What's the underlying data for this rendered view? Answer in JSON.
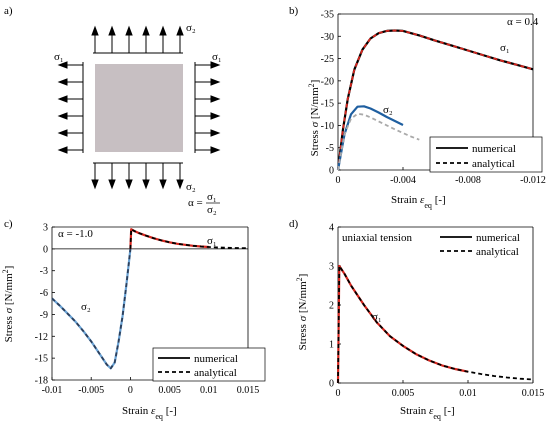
{
  "panel_a": {
    "label": "a)",
    "sigma1_left": "σ₁",
    "sigma1_right": "σ₁",
    "sigma2_top": "σ₂",
    "sigma2_bottom": "σ₂",
    "alpha_text": "α =",
    "alpha_num": "σ₁",
    "alpha_den": "σ₂",
    "colors": {
      "plate": "#c7bfc2",
      "arrow": "#000000"
    }
  },
  "chart_data": [
    {
      "panel": "b)",
      "type": "line",
      "annotation": "α = 0.4",
      "xlabel": "Strain ε_eq [-]",
      "ylabel": "Stress σ [N/mm²]",
      "xlim": [
        0,
        -0.012
      ],
      "ylim": [
        0,
        -35
      ],
      "xticks": [
        "0",
        "-0.004",
        "-0.008",
        "-0.012"
      ],
      "yticks": [
        "0",
        "-5",
        "-10",
        "-15",
        "-20",
        "-25",
        "-30",
        "-35"
      ],
      "curve_labels": [
        "σ₁",
        "σ₂"
      ],
      "legend": [
        "numerical",
        "analytical"
      ],
      "legend_position": "bottom-right",
      "series": [
        {
          "name": "σ₁ numerical",
          "style": "solid",
          "color": "#000000",
          "x": [
            0,
            -0.0003,
            -0.0006,
            -0.001,
            -0.0015,
            -0.002,
            -0.0025,
            -0.003,
            -0.0035,
            -0.004,
            -0.005,
            -0.006,
            -0.007,
            -0.008,
            -0.009,
            -0.01,
            -0.011,
            -0.012
          ],
          "y": [
            0,
            -9,
            -16,
            -22.5,
            -27,
            -29.5,
            -30.7,
            -31.2,
            -31.3,
            -31.2,
            -30.2,
            -29.0,
            -27.9,
            -26.8,
            -25.7,
            -24.6,
            -23.6,
            -22.6
          ]
        },
        {
          "name": "σ₁ analytical",
          "style": "dash",
          "color": "#d7261e",
          "x": [
            0,
            -0.0003,
            -0.0006,
            -0.001,
            -0.0015,
            -0.002,
            -0.0025,
            -0.003,
            -0.0035,
            -0.004,
            -0.005,
            -0.006,
            -0.007,
            -0.008,
            -0.009,
            -0.01,
            -0.011,
            -0.012
          ],
          "y": [
            0,
            -9,
            -16,
            -22.5,
            -27,
            -29.5,
            -30.7,
            -31.2,
            -31.3,
            -31.2,
            -30.2,
            -29.0,
            -27.9,
            -26.8,
            -25.7,
            -24.6,
            -23.6,
            -22.6
          ]
        },
        {
          "name": "σ₂ numerical",
          "style": "solid",
          "color": "#1f5fa0",
          "x": [
            0,
            -0.0004,
            -0.0008,
            -0.0012,
            -0.0016,
            -0.002,
            -0.0025,
            -0.003,
            -0.0035,
            -0.004
          ],
          "y": [
            0,
            -8,
            -12.5,
            -14.2,
            -14.3,
            -13.8,
            -12.9,
            -11.9,
            -11.0,
            -10.1
          ]
        },
        {
          "name": "σ₂ analytical",
          "style": "dash",
          "color": "#aaaaaa",
          "x": [
            0,
            -0.0004,
            -0.0008,
            -0.0012,
            -0.0016,
            -0.002,
            -0.0025,
            -0.003,
            -0.0035,
            -0.004,
            -0.0045,
            -0.005
          ],
          "y": [
            0,
            -8,
            -11.5,
            -12.6,
            -12.4,
            -11.8,
            -10.9,
            -10.0,
            -9.1,
            -8.3,
            -7.5,
            -6.8
          ]
        }
      ]
    },
    {
      "panel": "c)",
      "type": "line",
      "annotation": "α = -1.0",
      "xlabel": "Strain ε_eq [-]",
      "ylabel": "Stress σ [N/mm²]",
      "xlim": [
        -0.01,
        0.015
      ],
      "ylim": [
        -18,
        3
      ],
      "xticks": [
        "-0.01",
        "-0.005",
        "0",
        "0.005",
        "0.01",
        "0.015"
      ],
      "yticks": [
        "3",
        "0",
        "-3",
        "-6",
        "-9",
        "-12",
        "-15",
        "-18"
      ],
      "curve_labels": [
        "σ₁",
        "σ₂"
      ],
      "legend": [
        "numerical",
        "analytical"
      ],
      "legend_position": "bottom-right",
      "series": [
        {
          "name": "σ₂ numerical",
          "style": "solid",
          "color": "#6aa2d4",
          "x": [
            -0.01,
            -0.009,
            -0.008,
            -0.007,
            -0.006,
            -0.005,
            -0.004,
            -0.003,
            -0.0025,
            -0.002,
            -0.0015,
            -0.001,
            -0.0005,
            -0.0002,
            0
          ],
          "y": [
            -6.8,
            -7.8,
            -8.9,
            -10.0,
            -11.3,
            -12.7,
            -14.3,
            -15.9,
            -16.4,
            -15.6,
            -12.7,
            -9.2,
            -4.8,
            -2.0,
            0
          ]
        },
        {
          "name": "σ₂ analytical",
          "style": "dash",
          "color": "#2c3e5a",
          "x": [
            -0.01,
            -0.009,
            -0.008,
            -0.007,
            -0.006,
            -0.005,
            -0.004,
            -0.003,
            -0.0025,
            -0.002,
            -0.0015,
            -0.001,
            -0.0005,
            -0.0002,
            0
          ],
          "y": [
            -6.8,
            -7.8,
            -8.9,
            -10.0,
            -11.3,
            -12.7,
            -14.3,
            -15.9,
            -16.4,
            -15.6,
            -12.7,
            -9.2,
            -4.8,
            -2.0,
            0
          ]
        },
        {
          "name": "σ₁ numerical",
          "style": "solid",
          "color": "#d7261e",
          "x": [
            0,
            0.0001,
            0.0005,
            0.001,
            0.002,
            0.003,
            0.004,
            0.005,
            0.006,
            0.007,
            0.008,
            0.009,
            0.01
          ],
          "y": [
            0,
            2.7,
            2.45,
            2.2,
            1.8,
            1.45,
            1.15,
            0.9,
            0.7,
            0.55,
            0.42,
            0.32,
            0.25
          ]
        },
        {
          "name": "σ₁ analytical",
          "style": "dash",
          "color": "#000000",
          "x": [
            0,
            0.0001,
            0.0005,
            0.001,
            0.002,
            0.003,
            0.004,
            0.005,
            0.006,
            0.007,
            0.008,
            0.009,
            0.01,
            0.011,
            0.012,
            0.013,
            0.014,
            0.015
          ],
          "y": [
            0,
            2.7,
            2.45,
            2.2,
            1.8,
            1.45,
            1.15,
            0.9,
            0.7,
            0.55,
            0.42,
            0.32,
            0.25,
            0.2,
            0.16,
            0.13,
            0.11,
            0.1
          ]
        }
      ]
    },
    {
      "panel": "d)",
      "type": "line",
      "annotation": "uniaxial tension",
      "xlabel": "Strain ε_eq [-]",
      "ylabel": "Stress σ [N/mm²]",
      "xlim": [
        0,
        0.015
      ],
      "ylim": [
        0,
        4
      ],
      "xticks": [
        "0",
        "0.005",
        "0.01",
        "0.015"
      ],
      "yticks": [
        "0",
        "1",
        "2",
        "3",
        "4"
      ],
      "curve_labels": [
        "σ₁"
      ],
      "legend": [
        "numerical",
        "analytical"
      ],
      "legend_position": "top-right",
      "series": [
        {
          "name": "σ₁ numerical",
          "style": "solid",
          "color": "#d7261e",
          "x": [
            0,
            0.0001,
            0.0005,
            0.001,
            0.002,
            0.003,
            0.004,
            0.005,
            0.006,
            0.007,
            0.008,
            0.009,
            0.01
          ],
          "y": [
            0,
            3.0,
            2.8,
            2.5,
            2.0,
            1.55,
            1.2,
            0.95,
            0.74,
            0.58,
            0.45,
            0.36,
            0.29
          ]
        },
        {
          "name": "σ₁ analytical",
          "style": "dash",
          "color": "#000000",
          "x": [
            0,
            0.0001,
            0.0005,
            0.001,
            0.002,
            0.003,
            0.004,
            0.005,
            0.006,
            0.007,
            0.008,
            0.009,
            0.01,
            0.011,
            0.012,
            0.013,
            0.014,
            0.015
          ],
          "y": [
            0,
            3.0,
            2.8,
            2.5,
            2.0,
            1.55,
            1.2,
            0.95,
            0.74,
            0.58,
            0.45,
            0.36,
            0.29,
            0.23,
            0.18,
            0.14,
            0.11,
            0.09
          ]
        }
      ]
    }
  ]
}
